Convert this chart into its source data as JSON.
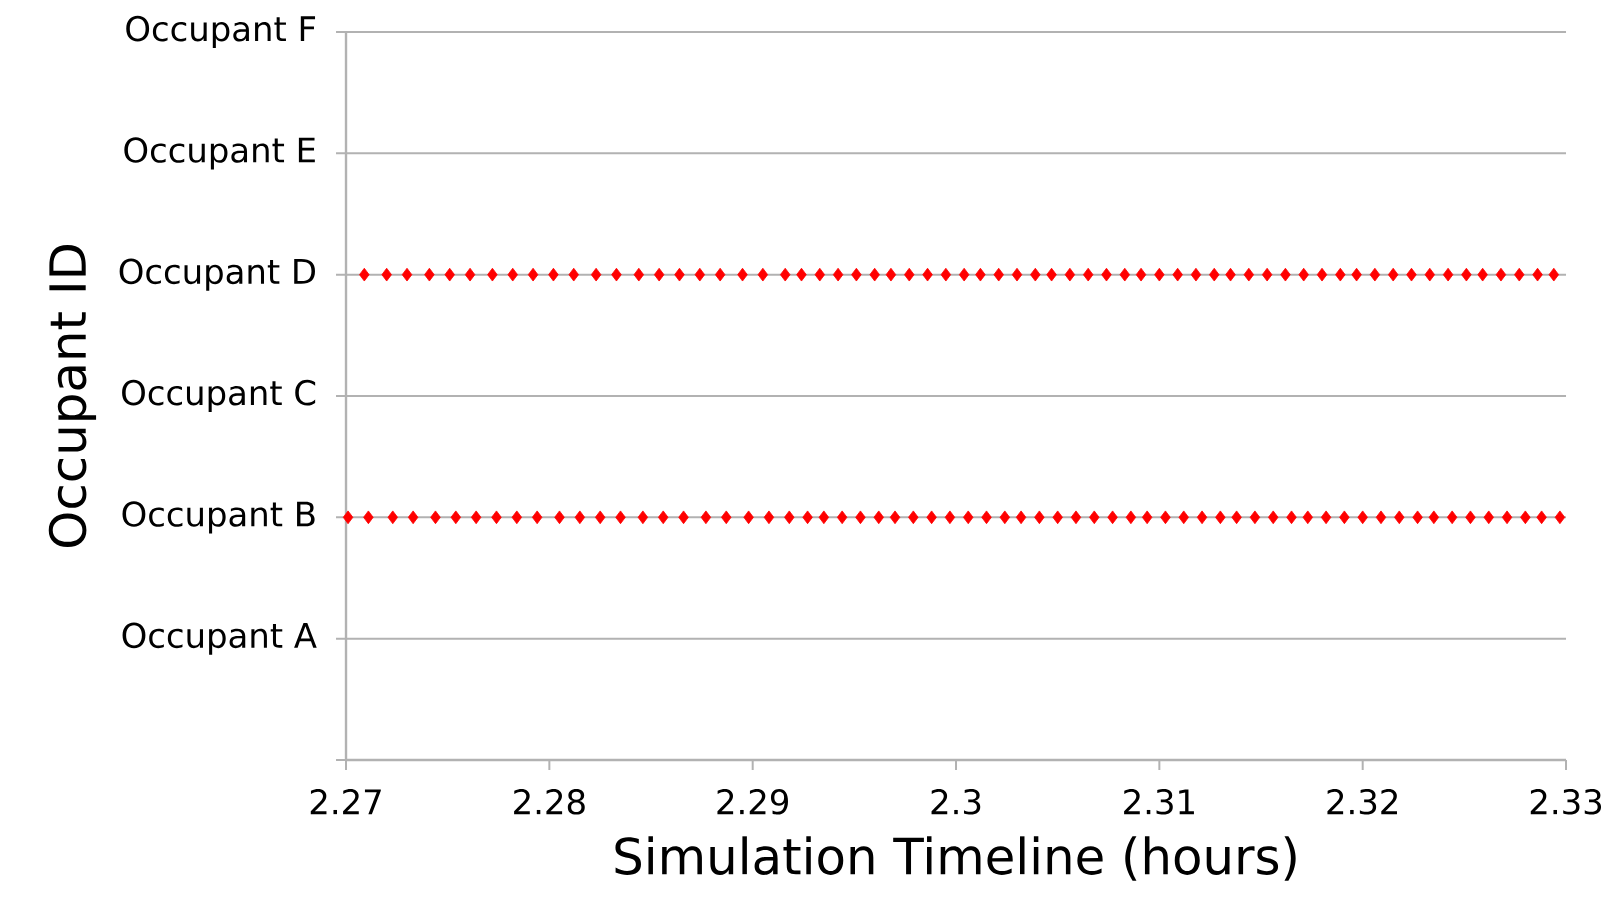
{
  "chart_data": {
    "type": "scatter",
    "xlabel": "Simulation Timeline (hours)",
    "ylabel": "Occupant ID",
    "xlim": [
      2.27,
      2.33
    ],
    "xticks": [
      2.27,
      2.28,
      2.29,
      2.3,
      2.31,
      2.32,
      2.33
    ],
    "orientation": "horizontal",
    "categories": [
      "Occupant F",
      "Occupant E",
      "Occupant D",
      "Occupant C",
      "Occupant B",
      "Occupant A",
      null
    ],
    "grid": "y",
    "marker": "diamond",
    "series": [
      {
        "color": "#ff0000",
        "values": [
          null,
          null,
          2.2709,
          null,
          2.2701,
          null,
          null
        ]
      },
      {
        "color": "#ff0000",
        "values": [
          null,
          null,
          2.272,
          null,
          2.2711,
          null,
          null
        ]
      },
      {
        "color": "#ff0000",
        "values": [
          null,
          null,
          2.273,
          null,
          2.2723,
          null,
          null
        ]
      },
      {
        "color": "#ff0000",
        "values": [
          null,
          null,
          2.2741,
          null,
          2.2733,
          null,
          null
        ]
      },
      {
        "color": "#ff0000",
        "values": [
          null,
          null,
          2.2751,
          null,
          2.2744,
          null,
          null
        ]
      },
      {
        "color": "#ff0000",
        "values": [
          null,
          null,
          2.2761,
          null,
          2.2754,
          null,
          null
        ]
      },
      {
        "color": "#ff0000",
        "values": [
          null,
          null,
          2.2772,
          null,
          2.2764,
          null,
          null
        ]
      },
      {
        "color": "#ff0000",
        "values": [
          null,
          null,
          2.2782,
          null,
          2.2774,
          null,
          null
        ]
      },
      {
        "color": "#ff0000",
        "values": [
          null,
          null,
          2.2792,
          null,
          2.2784,
          null,
          null
        ]
      },
      {
        "color": "#ff0000",
        "values": [
          null,
          null,
          2.2802,
          null,
          2.2794,
          null,
          null
        ]
      },
      {
        "color": "#ff0000",
        "values": [
          null,
          null,
          2.2812,
          null,
          2.2805,
          null,
          null
        ]
      },
      {
        "color": "#ff0000",
        "values": [
          null,
          null,
          2.2823,
          null,
          2.2815,
          null,
          null
        ]
      },
      {
        "color": "#ff0000",
        "values": [
          null,
          null,
          2.2833,
          null,
          2.2825,
          null,
          null
        ]
      },
      {
        "color": "#ff0000",
        "values": [
          null,
          null,
          2.2844,
          null,
          2.2835,
          null,
          null
        ]
      },
      {
        "color": "#ff0000",
        "values": [
          null,
          null,
          2.2854,
          null,
          2.2846,
          null,
          null
        ]
      },
      {
        "color": "#ff0000",
        "values": [
          null,
          null,
          2.2864,
          null,
          2.2856,
          null,
          null
        ]
      },
      {
        "color": "#ff0000",
        "values": [
          null,
          null,
          2.2874,
          null,
          2.2866,
          null,
          null
        ]
      },
      {
        "color": "#ff0000",
        "values": [
          null,
          null,
          2.2884,
          null,
          2.2877,
          null,
          null
        ]
      },
      {
        "color": "#ff0000",
        "values": [
          null,
          null,
          2.2895,
          null,
          2.2887,
          null,
          null
        ]
      },
      {
        "color": "#ff0000",
        "values": [
          null,
          null,
          2.2905,
          null,
          2.2898,
          null,
          null
        ]
      },
      {
        "color": "#ff0000",
        "values": [
          null,
          null,
          2.2916,
          null,
          2.2908,
          null,
          null
        ]
      },
      {
        "color": "#ff0000",
        "values": [
          null,
          null,
          2.2924,
          null,
          2.2918,
          null,
          null
        ]
      },
      {
        "color": "#ff0000",
        "values": [
          null,
          null,
          2.2933,
          null,
          2.2927,
          null,
          null
        ]
      },
      {
        "color": "#ff0000",
        "values": [
          null,
          null,
          2.2942,
          null,
          2.2935,
          null,
          null
        ]
      },
      {
        "color": "#ff0000",
        "values": [
          null,
          null,
          2.2951,
          null,
          2.2944,
          null,
          null
        ]
      },
      {
        "color": "#ff0000",
        "values": [
          null,
          null,
          2.296,
          null,
          2.2953,
          null,
          null
        ]
      },
      {
        "color": "#ff0000",
        "values": [
          null,
          null,
          2.2968,
          null,
          2.2962,
          null,
          null
        ]
      },
      {
        "color": "#ff0000",
        "values": [
          null,
          null,
          2.2977,
          null,
          2.297,
          null,
          null
        ]
      },
      {
        "color": "#ff0000",
        "values": [
          null,
          null,
          2.2986,
          null,
          2.2979,
          null,
          null
        ]
      },
      {
        "color": "#ff0000",
        "values": [
          null,
          null,
          2.2995,
          null,
          2.2988,
          null,
          null
        ]
      },
      {
        "color": "#ff0000",
        "values": [
          null,
          null,
          2.3004,
          null,
          2.2997,
          null,
          null
        ]
      },
      {
        "color": "#ff0000",
        "values": [
          null,
          null,
          2.3012,
          null,
          2.3006,
          null,
          null
        ]
      },
      {
        "color": "#ff0000",
        "values": [
          null,
          null,
          2.3021,
          null,
          2.3015,
          null,
          null
        ]
      },
      {
        "color": "#ff0000",
        "values": [
          null,
          null,
          2.303,
          null,
          2.3024,
          null,
          null
        ]
      },
      {
        "color": "#ff0000",
        "values": [
          null,
          null,
          2.3039,
          null,
          2.3032,
          null,
          null
        ]
      },
      {
        "color": "#ff0000",
        "values": [
          null,
          null,
          2.3047,
          null,
          2.3041,
          null,
          null
        ]
      },
      {
        "color": "#ff0000",
        "values": [
          null,
          null,
          2.3056,
          null,
          2.305,
          null,
          null
        ]
      },
      {
        "color": "#ff0000",
        "values": [
          null,
          null,
          2.3065,
          null,
          2.3059,
          null,
          null
        ]
      },
      {
        "color": "#ff0000",
        "values": [
          null,
          null,
          2.3074,
          null,
          2.3068,
          null,
          null
        ]
      },
      {
        "color": "#ff0000",
        "values": [
          null,
          null,
          2.3083,
          null,
          2.3077,
          null,
          null
        ]
      },
      {
        "color": "#ff0000",
        "values": [
          null,
          null,
          2.3091,
          null,
          2.3086,
          null,
          null
        ]
      },
      {
        "color": "#ff0000",
        "values": [
          null,
          null,
          2.31,
          null,
          2.3094,
          null,
          null
        ]
      },
      {
        "color": "#ff0000",
        "values": [
          null,
          null,
          2.3109,
          null,
          2.3103,
          null,
          null
        ]
      },
      {
        "color": "#ff0000",
        "values": [
          null,
          null,
          2.3118,
          null,
          2.3112,
          null,
          null
        ]
      },
      {
        "color": "#ff0000",
        "values": [
          null,
          null,
          2.3127,
          null,
          2.3121,
          null,
          null
        ]
      },
      {
        "color": "#ff0000",
        "values": [
          null,
          null,
          2.3135,
          null,
          2.313,
          null,
          null
        ]
      },
      {
        "color": "#ff0000",
        "values": [
          null,
          null,
          2.3144,
          null,
          2.3138,
          null,
          null
        ]
      },
      {
        "color": "#ff0000",
        "values": [
          null,
          null,
          2.3153,
          null,
          2.3147,
          null,
          null
        ]
      },
      {
        "color": "#ff0000",
        "values": [
          null,
          null,
          2.3162,
          null,
          2.3156,
          null,
          null
        ]
      },
      {
        "color": "#ff0000",
        "values": [
          null,
          null,
          2.3171,
          null,
          2.3165,
          null,
          null
        ]
      },
      {
        "color": "#ff0000",
        "values": [
          null,
          null,
          2.318,
          null,
          2.3173,
          null,
          null
        ]
      },
      {
        "color": "#ff0000",
        "values": [
          null,
          null,
          2.3189,
          null,
          2.3182,
          null,
          null
        ]
      },
      {
        "color": "#ff0000",
        "values": [
          null,
          null,
          2.3197,
          null,
          2.3191,
          null,
          null
        ]
      },
      {
        "color": "#ff0000",
        "values": [
          null,
          null,
          2.3206,
          null,
          2.32,
          null,
          null
        ]
      },
      {
        "color": "#ff0000",
        "values": [
          null,
          null,
          2.3215,
          null,
          2.3209,
          null,
          null
        ]
      },
      {
        "color": "#ff0000",
        "values": [
          null,
          null,
          2.3224,
          null,
          2.3218,
          null,
          null
        ]
      },
      {
        "color": "#ff0000",
        "values": [
          null,
          null,
          2.3233,
          null,
          2.3227,
          null,
          null
        ]
      },
      {
        "color": "#ff0000",
        "values": [
          null,
          null,
          2.3242,
          null,
          2.3235,
          null,
          null
        ]
      },
      {
        "color": "#ff0000",
        "values": [
          null,
          null,
          2.3251,
          null,
          2.3244,
          null,
          null
        ]
      },
      {
        "color": "#ff0000",
        "values": [
          null,
          null,
          2.3259,
          null,
          2.3253,
          null,
          null
        ]
      },
      {
        "color": "#ff0000",
        "values": [
          null,
          null,
          2.3268,
          null,
          2.3262,
          null,
          null
        ]
      },
      {
        "color": "#ff0000",
        "values": [
          null,
          null,
          2.3277,
          null,
          2.3271,
          null,
          null
        ]
      },
      {
        "color": "#ff0000",
        "values": [
          null,
          null,
          2.3286,
          null,
          2.328,
          null,
          null
        ]
      },
      {
        "color": "#ff0000",
        "values": [
          null,
          null,
          2.3294,
          null,
          2.3288,
          null,
          null
        ]
      },
      {
        "color": "#ff0000",
        "values": [
          null,
          null,
          null,
          null,
          2.3297,
          null,
          null
        ]
      }
    ]
  }
}
